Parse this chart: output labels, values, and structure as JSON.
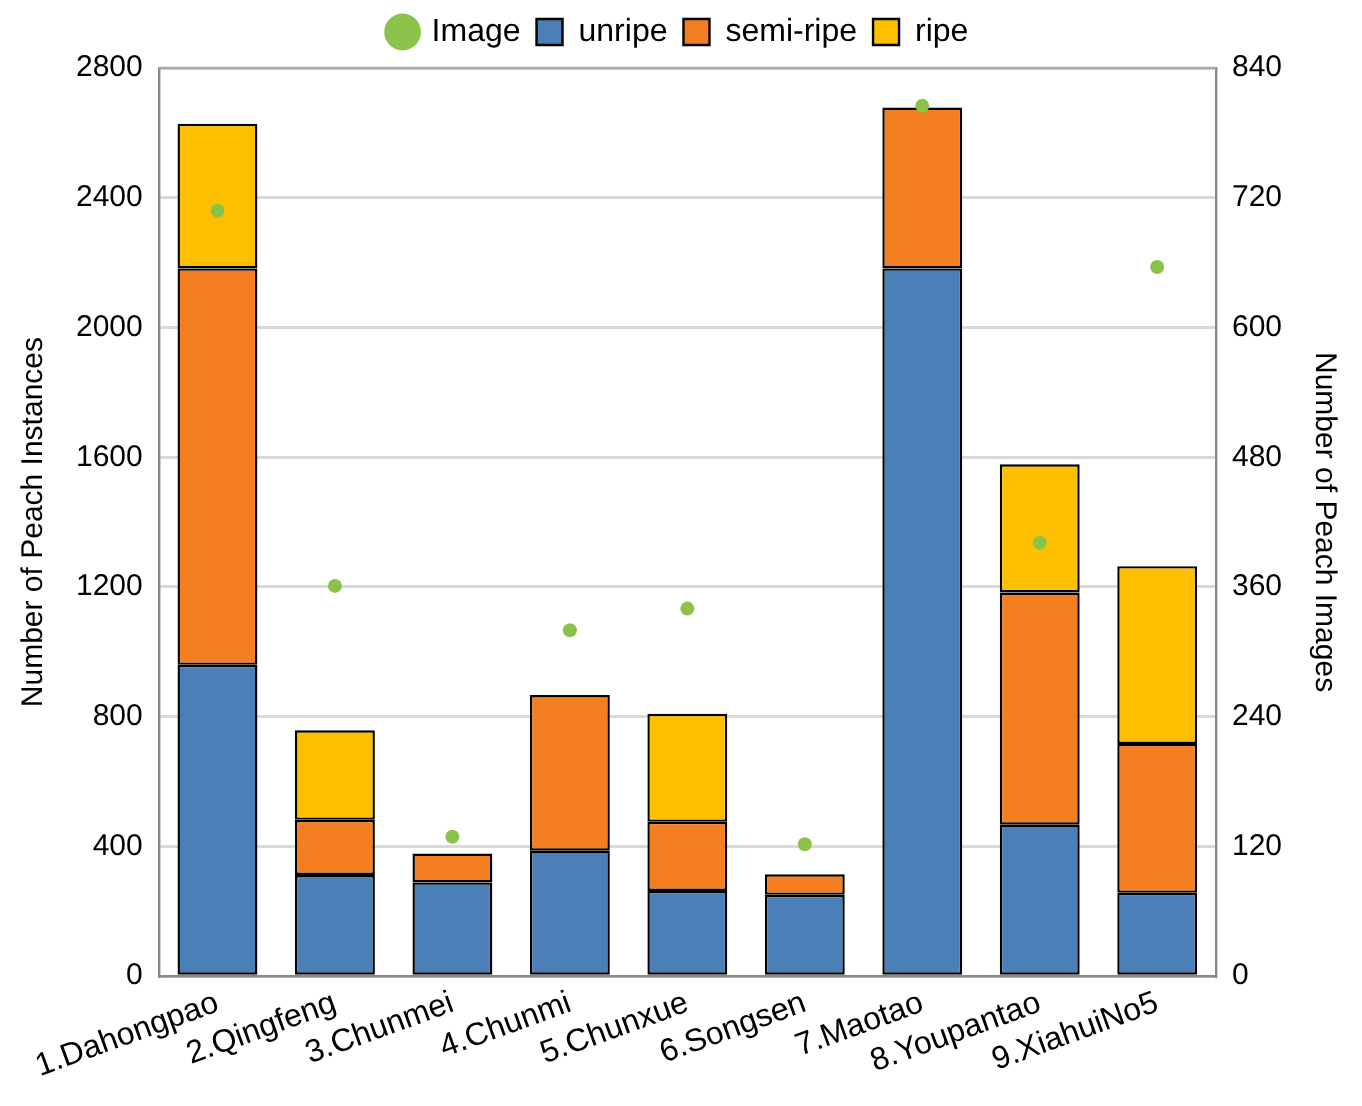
{
  "chart_data": {
    "type": "bar",
    "stacked": true,
    "ylabel": "Number of Peach Instances",
    "y2label": "Number of Peach Images",
    "categories": [
      "1.Dahongpao",
      "2.Qingfeng",
      "3.Chunmei",
      "4.Chunmi",
      "5.Chunxue",
      "6.Songsen",
      "7.Maotao",
      "8.Youpantao",
      "9.XiahuiNo5"
    ],
    "series": [
      {
        "name": "unripe",
        "color": "#4a7fb8",
        "values": [
          960,
          312,
          289,
          387,
          263,
          251,
          2182,
          467,
          257
        ]
      },
      {
        "name": "semi-ripe",
        "color": "#f47f20",
        "values": [
          1222,
          170,
          89,
          480,
          213,
          63,
          496,
          716,
          459
        ]
      },
      {
        "name": "ripe",
        "color": "#fdbf00",
        "values": [
          446,
          276,
          null,
          null,
          333,
          null,
          null,
          395,
          548
        ]
      },
      {
        "name": "Image",
        "type": "scatter",
        "axis": "y2",
        "marker": "circle",
        "color": "#8bc34a",
        "x": [
          "1.Dahongpao",
          "2.Qingfeng",
          "3.Chunmei",
          "4.Chunmi",
          "5.Chunxue",
          "6.Songsen",
          "7.Maotao",
          "8.Youpantao",
          "9.XiahuiNo5"
        ],
        "values": [
          708,
          361,
          129,
          320,
          340,
          122,
          805,
          401,
          656
        ]
      }
    ],
    "ylim": [
      0,
      2800
    ],
    "yticks": [
      0,
      400,
      800,
      1200,
      1600,
      2000,
      2400,
      2800
    ],
    "y2lim": [
      0,
      840
    ],
    "y2ticks": [
      0,
      120,
      240,
      360,
      480,
      600,
      720,
      840
    ],
    "grid": "y",
    "legend": "top"
  }
}
